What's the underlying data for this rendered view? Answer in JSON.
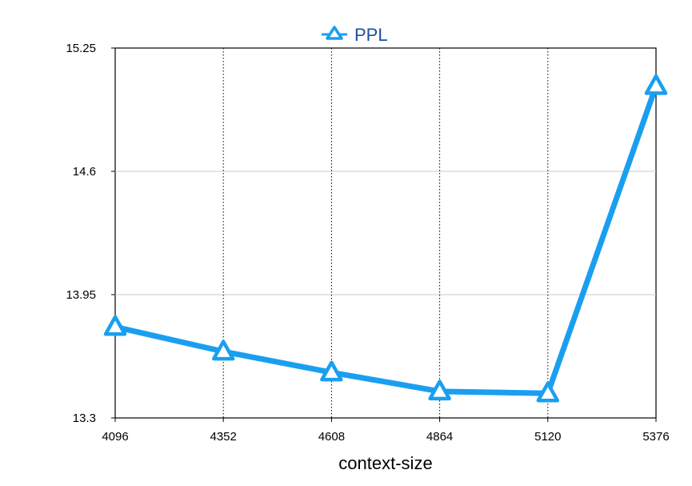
{
  "chart_data": {
    "type": "line",
    "title": "",
    "xlabel": "context-size",
    "ylabel": "",
    "categories": [
      "4096",
      "4352",
      "4608",
      "4864",
      "5120",
      "5376"
    ],
    "series": [
      {
        "name": "PPL",
        "marker": "triangle",
        "color": "#1a9ff0",
        "values": [
          13.78,
          13.65,
          13.54,
          13.44,
          13.43,
          15.05
        ]
      }
    ],
    "ylim": [
      13.3,
      15.25
    ],
    "yticks": [
      "13.3",
      "13.95",
      "14.6",
      "15.25"
    ],
    "grid": {
      "vertical": "dotted",
      "horizontal": "solid-light"
    },
    "legend_position": "top-center"
  },
  "colors": {
    "series": "#1a9ff0",
    "legend_text": "#1f4e9a",
    "hgrid": "#c8c8c8",
    "vgrid": "#000000",
    "frame": "#000000"
  }
}
